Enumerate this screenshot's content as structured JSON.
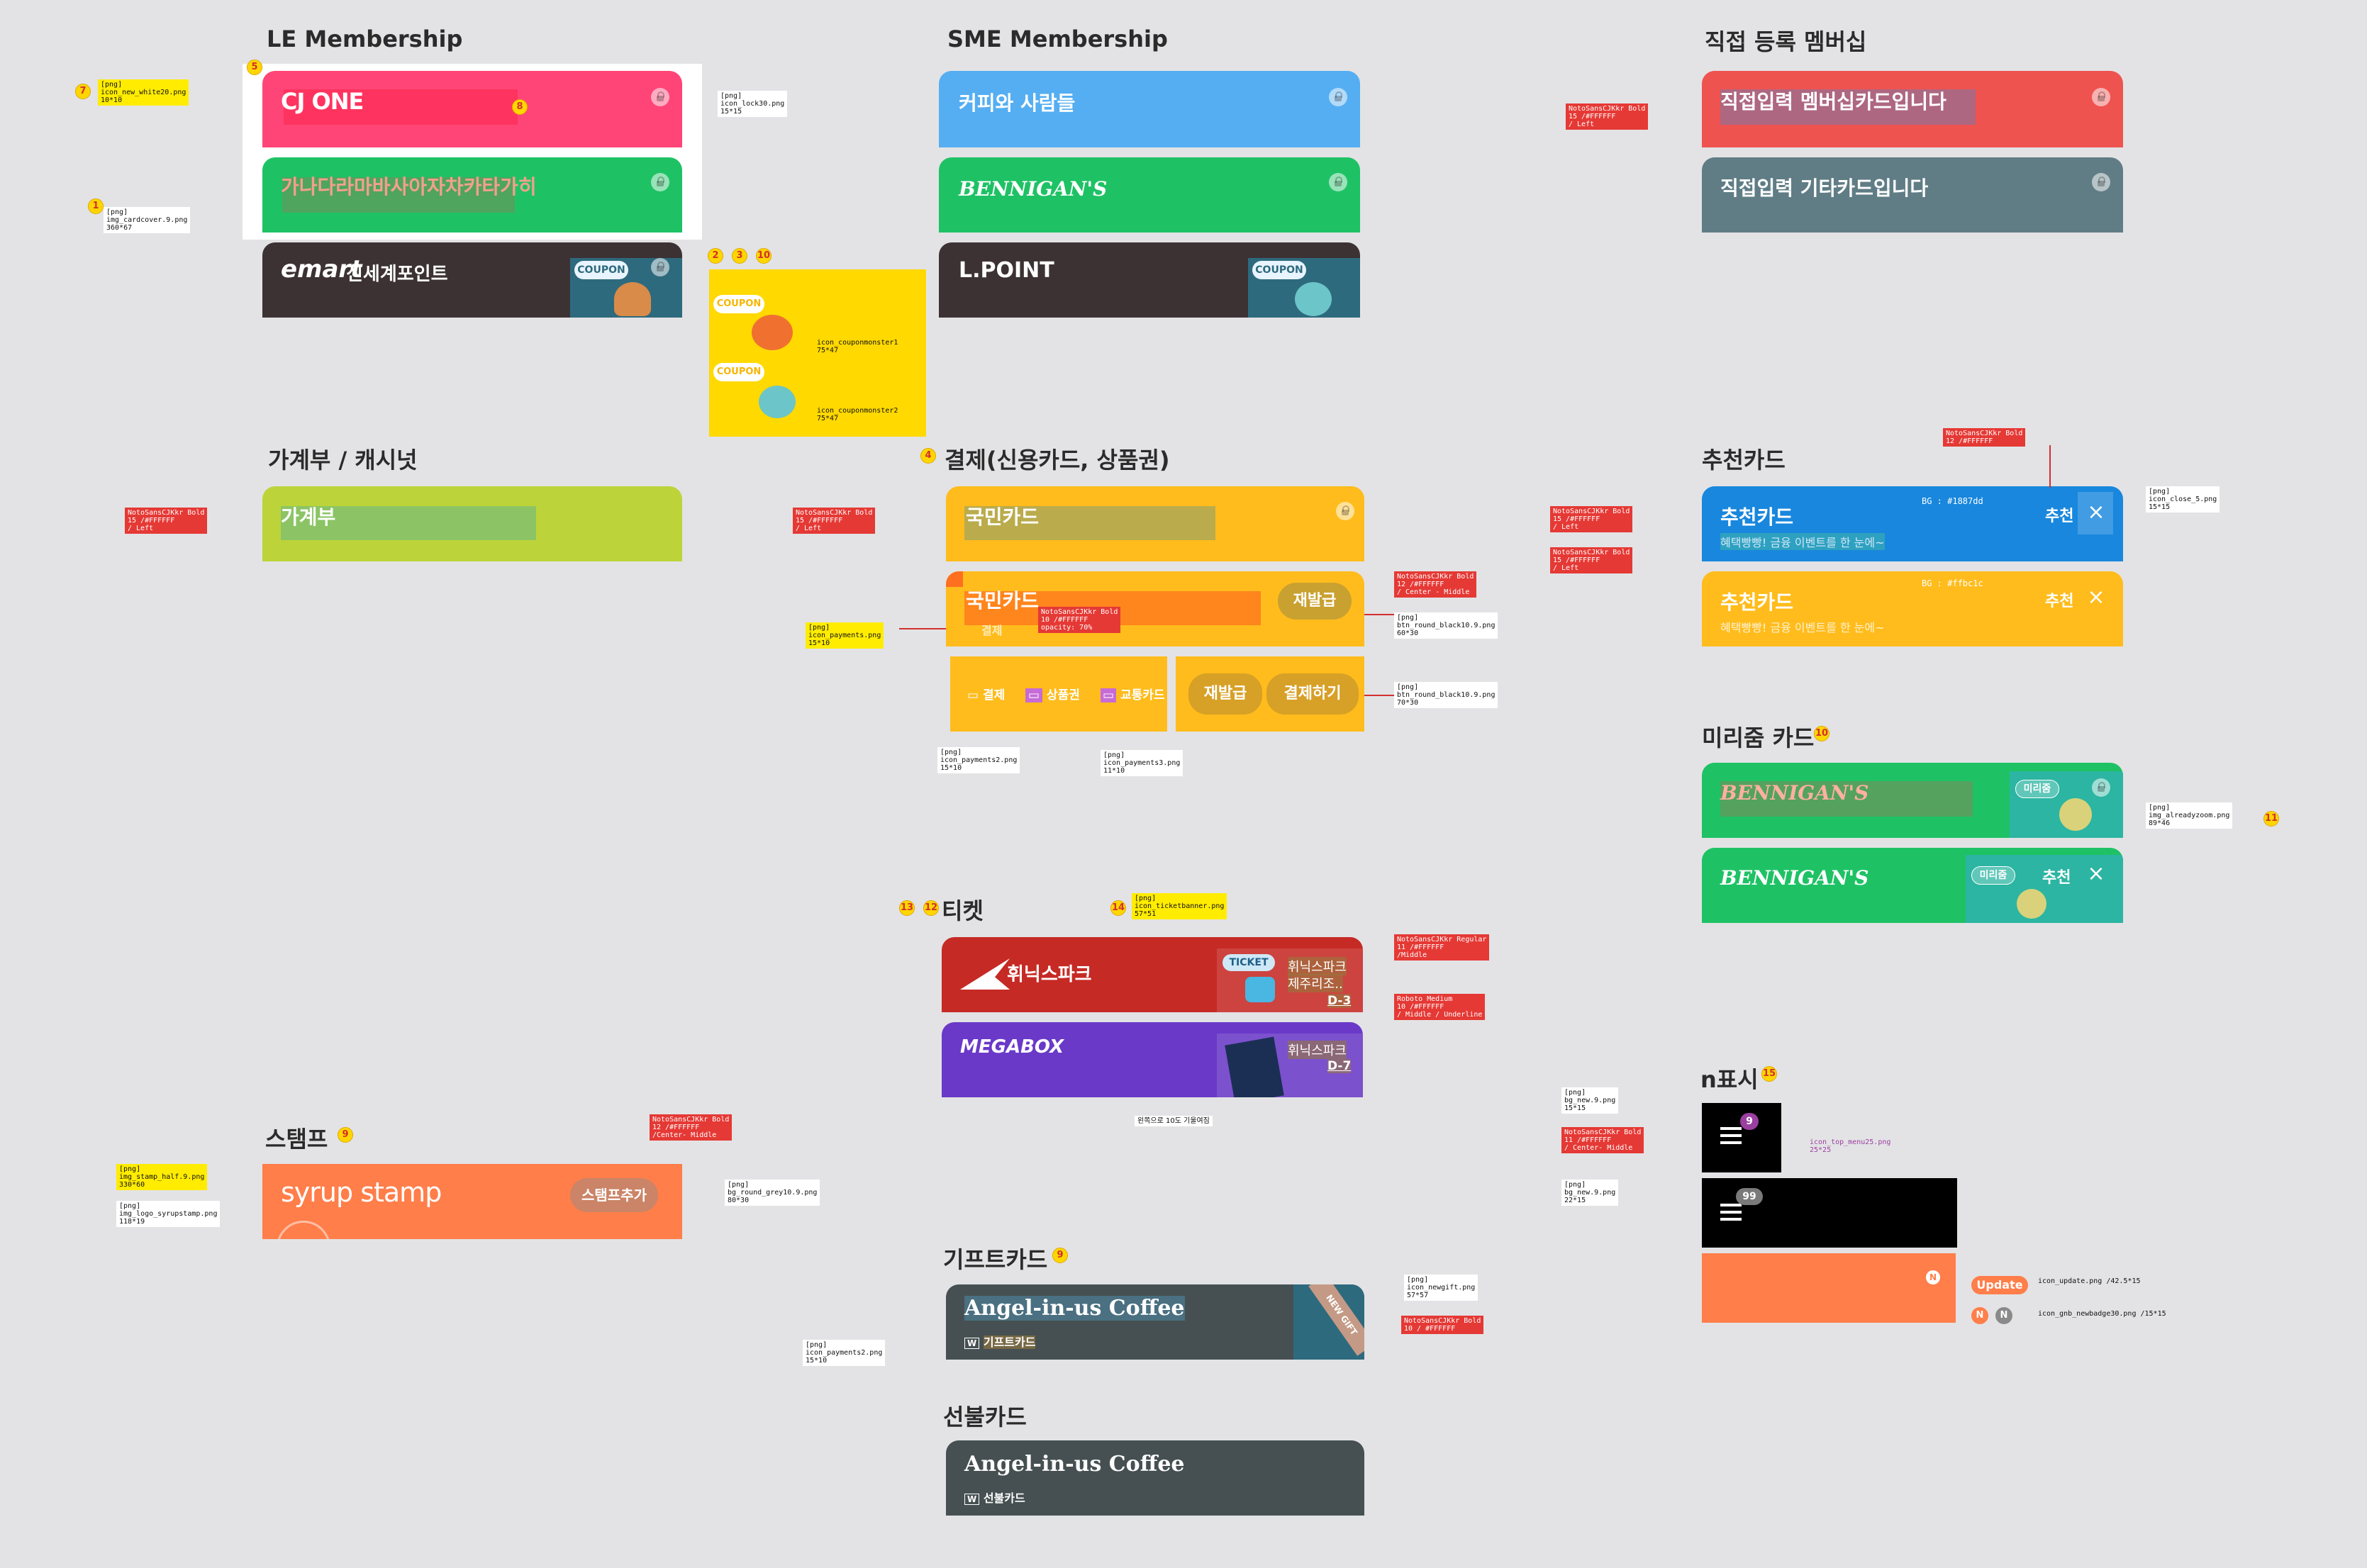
{
  "sections": {
    "le": "LE Membership",
    "sme": "SME Membership",
    "direct": "직접 등록 멤버십",
    "budget": "가계부 / 캐시넛",
    "payment": "결제(신용카드, 상품권)",
    "reco": "추천카드",
    "already": "미리줌 카드",
    "ticket": "티켓",
    "nshow": "n표시",
    "stamp": "스탬프",
    "gift": "기프트카드",
    "prepaid": "선불카드"
  },
  "cards": {
    "cjone": "CJ ONE",
    "ganada": "가나다라마바사아자차카타가히",
    "emart_logo": "emart",
    "emart_sub": "신세계포인트",
    "coupon": "COUPON",
    "coffee": "커피와 사람들",
    "bennigans": "BENNIGAN'S",
    "lpoint": "L.POINT",
    "direct1": "직접입력 멤버십카드입니다",
    "direct2": "직접입력 기타카드입니다",
    "budget": "가계부",
    "pay1": "국민카드",
    "pay2": "국민카드",
    "pay2_sub": "결제",
    "reissue": "재발급",
    "pay_tab1": "결제",
    "pay_tab2": "상품권",
    "pay_tab3": "교통카드",
    "reissue2": "재발급",
    "pay_btn": "결제하기",
    "reco_title": "추천카드",
    "reco_sub": "혜택빵빵! 금융 이벤트를 한 눈에~",
    "reco_label": "추천",
    "bg1": "BG : #1887dd",
    "bg2": "BG : #ffbc1c",
    "already_label": "미리줌",
    "wp_logo": "휘닉스파크",
    "ticket_badge": "TICKET",
    "ticket_txt1": "휘닉스파크",
    "ticket_txt2": "제주리조..",
    "dday1": "D-3",
    "megabox": "MEGABOX",
    "ticket_txt3": "휘닉스파크",
    "dday2": "D-7",
    "ticket_note": "왼쪽으로 10도 기울여짐",
    "stamp_logo": "syrup stamp",
    "stamp_btn": "스탬프추가",
    "angel": "Angel-in-us Coffee",
    "giftcard": "기프트카드",
    "newgift": "NEW GIFT",
    "prepaidcard": "선불카드",
    "badge99": "99",
    "badge9": "9",
    "update": "Update",
    "n": "N",
    "upd_note": "icon_update.png /42.5*15",
    "gnb_note": "icon_gnb_newbadge30.png /15*15"
  },
  "notes": {
    "n7": "[png]\nicon_new_white20.png\n10*10",
    "n_lock": "[png]\nicon_lock30.png\n15*15",
    "n1": "[png]\nimg_cardcover.9.png\n360*67",
    "m1": "icon_couponmonster1\n75*47",
    "m2": "icon_couponmonster2\n75*47",
    "dir_font": "NotoSansCJKkr Bold\n15 /#FFFFFF\n/ Left",
    "bud_font": "NotoSansCJKkr Bold\n15 /#FFFFFF\n/ Left",
    "pay_font": "NotoSansCJKkr Bold\n15 /#FFFFFF\n/ Left",
    "pay_sub_font": "NotoSansCJKkr Bold\n10 /#FFFFFF\nopacity: 70%",
    "pay_icon": "[png]\nicon_payments.png\n15*10",
    "btn_font": "NotoSansCJKkr Bold\n12 /#FFFFFF\n/ Center - Middle",
    "btn_png": "[png]\nbtn_round_black10.9.png\n60*30",
    "btn_png2": "[png]\nbtn_round_black10.9.png\n70*30",
    "pay2_png": "[png]\nicon_payments2.png\n15*10",
    "pay3_png": "[png]\nicon_payments3.png\n11*10",
    "reco_font": "NotoSansCJKkr Bold\n15 /#FFFFFF\n/ Left",
    "reco_font2": "NotoSansCJKkr Bold\n15 /#FFFFFF\n/ Left",
    "reco_lbl_font": "NotoSansCJKkr Bold\n12 /#FFFFFF",
    "close_png": "[png]\nicon_close_5.png\n15*15",
    "already_png": "[png]\nimg_alreadyzoom.png\n89*46",
    "tb_png": "[png]\nicon_ticketbanner.png\n57*51",
    "tk_font": "NotoSansCJKkr Regular\n11 /#FFFFFF\n/Middle",
    "tk_font2": "Roboto Medium\n10 /#FFFFFF\n/ Middle / Underline",
    "nb_png": "[png]\nbg_new.9.png\n15*15",
    "nb_font": "NotoSansCJKkr Bold\n11 /#FFFFFF\n/ Center- Middle",
    "menu_png": "icon_top_menu25.png\n25*25",
    "nb_png2": "[png]\nbg_new.9.png\n22*15",
    "st_png": "[png]\nimg_stamp_half.9.png\n330*60",
    "st_logo": "[png]\nimg_logo_syrupstamp.png\n118*19",
    "st_font": "NotoSansCJKkr Bold\n12 /#FFFFFF\n/Center- Middle",
    "st_btn": "[png]\nbg_round_grey10.9.png\n80*30",
    "ng_png": "[png]\nicon_newgift.png\n57*57",
    "ng_font": "NotoSansCJKkr Bold\n10 / #FFFFFF",
    "gp_png": "[png]\nicon_payments2.png\n15*10"
  },
  "markers": {
    "m5": "5",
    "m7": "7",
    "m8": "8",
    "m1": "1",
    "m2": "2",
    "m3": "3",
    "m10": "10",
    "m4": "4",
    "m10b": "10",
    "m11": "11",
    "m13": "13",
    "m12": "12",
    "m14": "14",
    "m9": "9",
    "m9b": "9",
    "m15": "15"
  },
  "colors": {
    "bg": "#e3e3e5",
    "pink": "#ff4577",
    "green": "#1ec265",
    "dark": "#3c3234",
    "blue": "#55aef2",
    "red": "#ef5350",
    "slate": "#607d86",
    "lime": "#bcd43a",
    "orange": "#ffbc1c",
    "recoBlue": "#1887dd",
    "ticketRed": "#c62a25",
    "purple": "#6a39c8",
    "stamp": "#ff7e4a",
    "angel": "#465052"
  }
}
